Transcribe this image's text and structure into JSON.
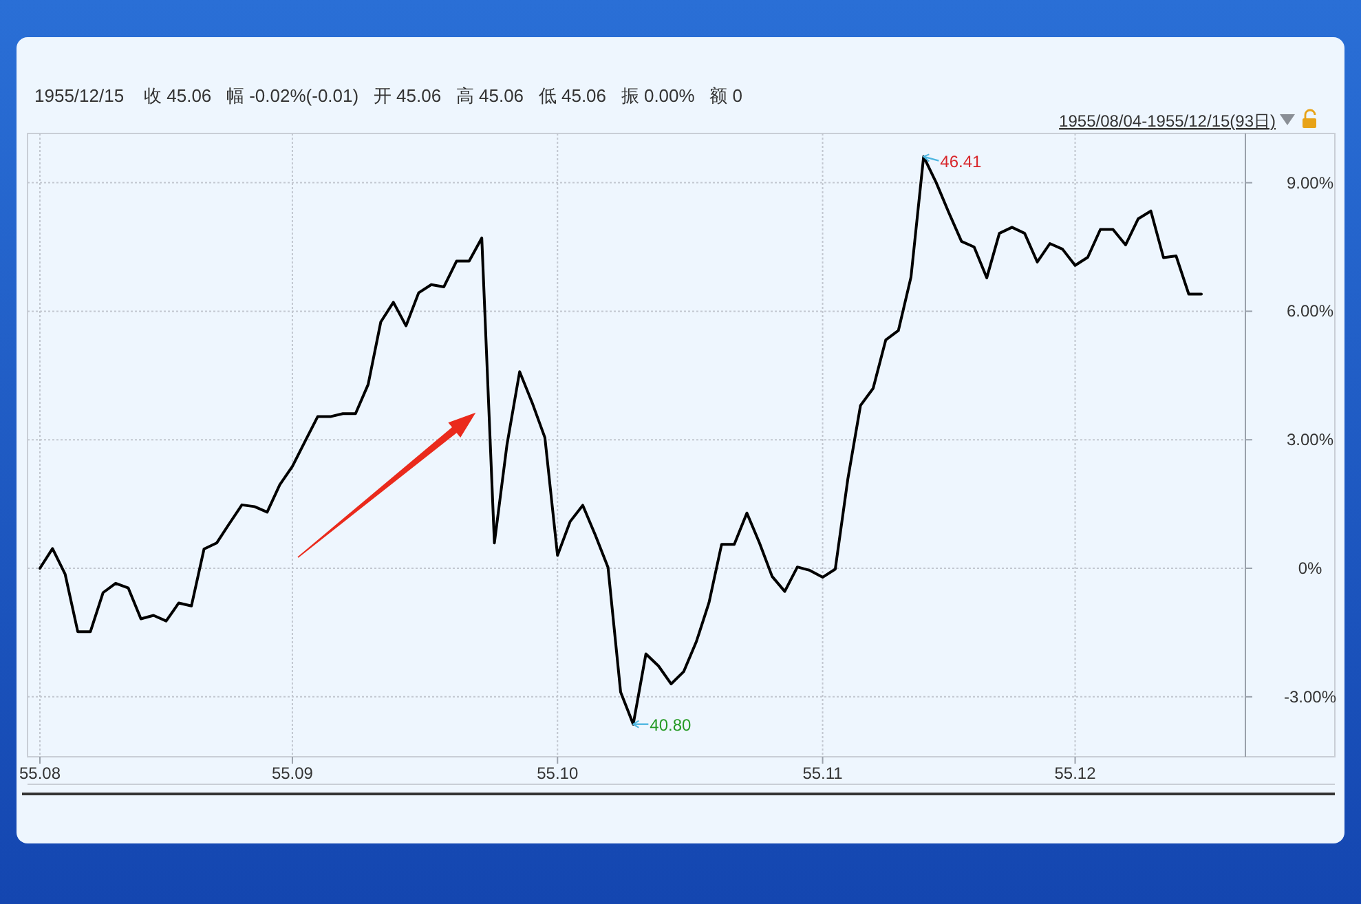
{
  "chart_data": {
    "type": "line",
    "title": "1955/12/15    收 45.06   幅 -0.02%(-0.01)   开 45.06   高 45.06   低 45.06   振 0.00%   额 0",
    "subtitle": "1955/08/04-1955/12/15(93日)",
    "categories": [
      "55.08",
      null,
      null,
      null,
      null,
      null,
      null,
      null,
      null,
      null,
      null,
      null,
      null,
      null,
      null,
      null,
      null,
      null,
      null,
      null,
      "55.09",
      null,
      null,
      null,
      null,
      null,
      null,
      null,
      null,
      null,
      null,
      null,
      null,
      null,
      null,
      null,
      null,
      null,
      null,
      null,
      null,
      "55.10",
      null,
      null,
      null,
      null,
      null,
      null,
      null,
      null,
      null,
      null,
      null,
      null,
      null,
      null,
      null,
      null,
      null,
      null,
      null,
      null,
      "55.11",
      null,
      null,
      null,
      null,
      null,
      null,
      null,
      null,
      null,
      null,
      null,
      null,
      null,
      null,
      null,
      null,
      null,
      null,
      null,
      "55.12",
      null,
      null,
      null,
      null,
      null,
      null,
      null,
      null,
      null,
      null
    ],
    "series": [
      {
        "color": "#000000",
        "values": [
          0.0,
          0.46,
          -0.14,
          -1.48,
          -1.48,
          -0.57,
          -0.35,
          -0.46,
          -1.18,
          -1.1,
          -1.23,
          -0.81,
          -0.88,
          0.45,
          0.59,
          1.04,
          1.48,
          1.44,
          1.31,
          1.95,
          2.38,
          2.96,
          3.54,
          3.54,
          3.61,
          3.61,
          4.29,
          5.75,
          6.21,
          5.66,
          6.43,
          6.62,
          6.57,
          7.17,
          7.17,
          7.71,
          0.59,
          2.89,
          4.59,
          3.86,
          3.05,
          0.3,
          1.09,
          1.47,
          0.77,
          0.02,
          -2.89,
          -3.64,
          -2.0,
          -2.28,
          -2.7,
          -2.41,
          -1.71,
          -0.8,
          0.56,
          0.56,
          1.29,
          0.59,
          -0.19,
          -0.54,
          0.03,
          -0.05,
          -0.21,
          -0.02,
          2.09,
          3.8,
          4.2,
          5.33,
          5.55,
          6.8,
          9.61,
          9.0,
          8.3,
          7.63,
          7.5,
          6.78,
          7.82,
          7.96,
          7.82,
          7.15,
          7.58,
          7.45,
          7.07,
          7.26,
          7.91,
          7.91,
          7.55,
          8.16,
          8.34,
          7.25,
          7.29,
          6.4,
          6.4
        ]
      }
    ],
    "ylim": [
      -4.4,
      10.15
    ],
    "yticks": [
      {
        "value": -3,
        "label": "-3.00%"
      },
      {
        "value": 0,
        "label": "0%"
      },
      {
        "value": 3,
        "label": "3.00%"
      },
      {
        "value": 6,
        "label": "6.00%"
      },
      {
        "value": 9,
        "label": "9.00%"
      }
    ],
    "grid": true,
    "annotations": [
      "46.41",
      "40.80"
    ]
  }
}
